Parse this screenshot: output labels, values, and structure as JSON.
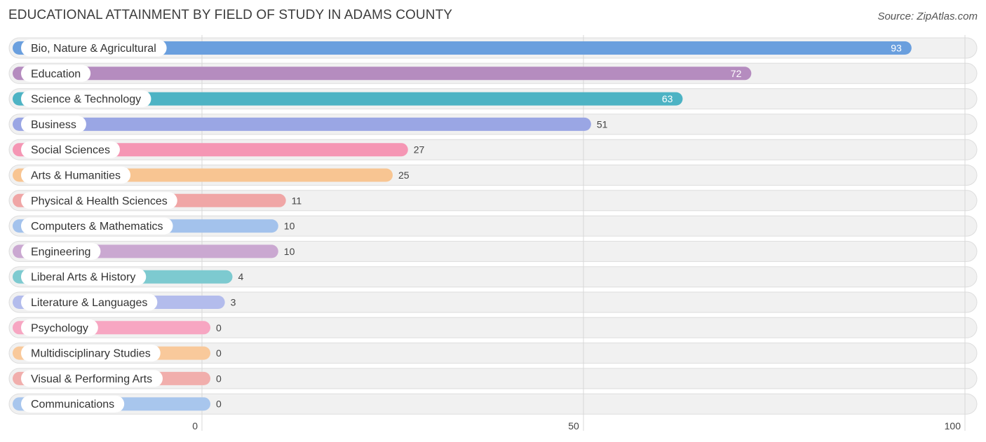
{
  "header": {
    "title": "EDUCATIONAL ATTAINMENT BY FIELD OF STUDY IN ADAMS COUNTY",
    "source": "Source: ZipAtlas.com"
  },
  "chart_data": {
    "type": "bar",
    "orientation": "horizontal",
    "title": "EDUCATIONAL ATTAINMENT BY FIELD OF STUDY IN ADAMS COUNTY",
    "categories": [
      "Bio, Nature & Agricultural",
      "Education",
      "Science & Technology",
      "Business",
      "Social Sciences",
      "Arts & Humanities",
      "Physical & Health Sciences",
      "Computers & Mathematics",
      "Engineering",
      "Liberal Arts & History",
      "Literature & Languages",
      "Psychology",
      "Multidisciplinary Studies",
      "Visual & Performing Arts",
      "Communications"
    ],
    "values": [
      93,
      72,
      63,
      51,
      27,
      25,
      11,
      10,
      10,
      4,
      3,
      0,
      0,
      0,
      0
    ],
    "colors": [
      "#6a9fde",
      "#b58cbf",
      "#4db3c4",
      "#9aa6e4",
      "#f596b4",
      "#f8c592",
      "#f0a6a6",
      "#a3c2ec",
      "#caa8d1",
      "#7dcad0",
      "#b3bcec",
      "#f7a6c2",
      "#f9c99b",
      "#f1aeac",
      "#a8c6ed"
    ],
    "xlim": [
      0,
      100
    ],
    "xticks": [
      "0",
      "50",
      "100"
    ],
    "grid": true,
    "legend": false
  }
}
